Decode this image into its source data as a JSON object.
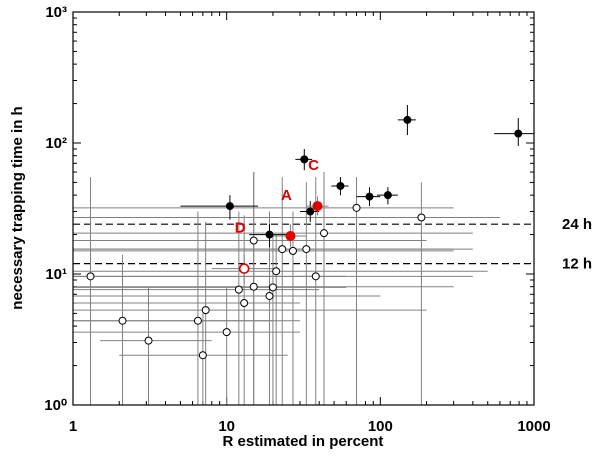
{
  "chart_data": {
    "type": "scatter",
    "x_label": "R estimated in percent",
    "y_label": "necessary trapping time in h",
    "log_x": true,
    "log_y": true,
    "xlim": [
      1,
      1000
    ],
    "ylim": [
      1,
      1000
    ],
    "xticks": [
      1,
      10,
      100,
      1000
    ],
    "yticks": [
      {
        "value": 1,
        "label": "10⁰"
      },
      {
        "value": 10,
        "label": "10¹"
      },
      {
        "value": 100,
        "label": "10²"
      },
      {
        "value": 1000,
        "label": "10³"
      }
    ],
    "reference_lines": [
      {
        "value": 24,
        "label": "24 h"
      },
      {
        "value": 12,
        "label": "12 h"
      }
    ],
    "annotations": [
      {
        "text": "A",
        "x": 26,
        "y": 19.5
      },
      {
        "text": "C",
        "x": 39,
        "y": 33
      },
      {
        "text": "D",
        "x": 13,
        "y": 11
      }
    ],
    "series": [
      {
        "color": "#808080",
        "marker": "open",
        "x": [
          1.3,
          2.1,
          3.1,
          6.5,
          7,
          7.3,
          10,
          12,
          13,
          15,
          15,
          19,
          20,
          21,
          23,
          27,
          33,
          38,
          43,
          70,
          185
        ],
        "values": [
          9.6,
          4.4,
          3.1,
          4.4,
          2.4,
          5.3,
          3.6,
          7.6,
          6.0,
          18,
          8,
          6.8,
          7.9,
          10.5,
          15.5,
          15,
          15.5,
          9.6,
          20.5,
          32,
          27
        ],
        "x_low": [
          1,
          1,
          1.5,
          1,
          2,
          1,
          1,
          1,
          1,
          1,
          1,
          1,
          1,
          1,
          1,
          1,
          1,
          1,
          1,
          1,
          1
        ],
        "x_high": [
          60,
          20,
          8,
          30,
          25,
          200,
          30,
          40,
          30,
          200,
          300,
          100,
          60,
          500,
          400,
          300,
          300,
          400,
          400,
          300,
          600
        ],
        "y_low": [
          1,
          1,
          1,
          1,
          1,
          1,
          1,
          1,
          1,
          1,
          1,
          1,
          1,
          1,
          1,
          1,
          1,
          1,
          1,
          1,
          1
        ],
        "y_high": [
          55,
          14,
          8,
          30,
          5,
          25,
          8,
          30,
          28,
          60,
          60,
          30,
          20,
          20,
          55,
          30,
          50,
          55,
          60,
          55,
          50
        ]
      },
      {
        "color": "#000000",
        "marker": "filled",
        "x": [
          10.5,
          19,
          32,
          35,
          55,
          85,
          112,
          150,
          790
        ],
        "values": [
          33,
          20,
          75,
          30,
          47,
          39,
          40,
          150,
          118
        ],
        "x_low": [
          5,
          14,
          28,
          30,
          48,
          70,
          95,
          130,
          550
        ],
        "x_high": [
          16,
          25,
          36,
          40,
          62,
          100,
          130,
          170,
          1000
        ],
        "y_low": [
          26,
          16,
          62,
          25,
          40,
          33,
          34,
          115,
          95
        ],
        "y_high": [
          40,
          24,
          90,
          36,
          55,
          46,
          46,
          195,
          155
        ]
      },
      {
        "color": "#e00000",
        "marker": "filled",
        "x": [
          26,
          39
        ],
        "values": [
          19.5,
          33
        ],
        "x_low": [
          20,
          33
        ],
        "x_high": [
          33,
          46
        ],
        "y_low": [
          16,
          28
        ],
        "y_high": [
          24,
          39
        ]
      },
      {
        "color": "#e00000",
        "marker": "open",
        "x": [
          13
        ],
        "values": [
          11
        ],
        "x_low": [
          8
        ],
        "x_high": [
          20
        ],
        "y_low": [
          8.5
        ],
        "y_high": [
          14
        ]
      }
    ]
  }
}
